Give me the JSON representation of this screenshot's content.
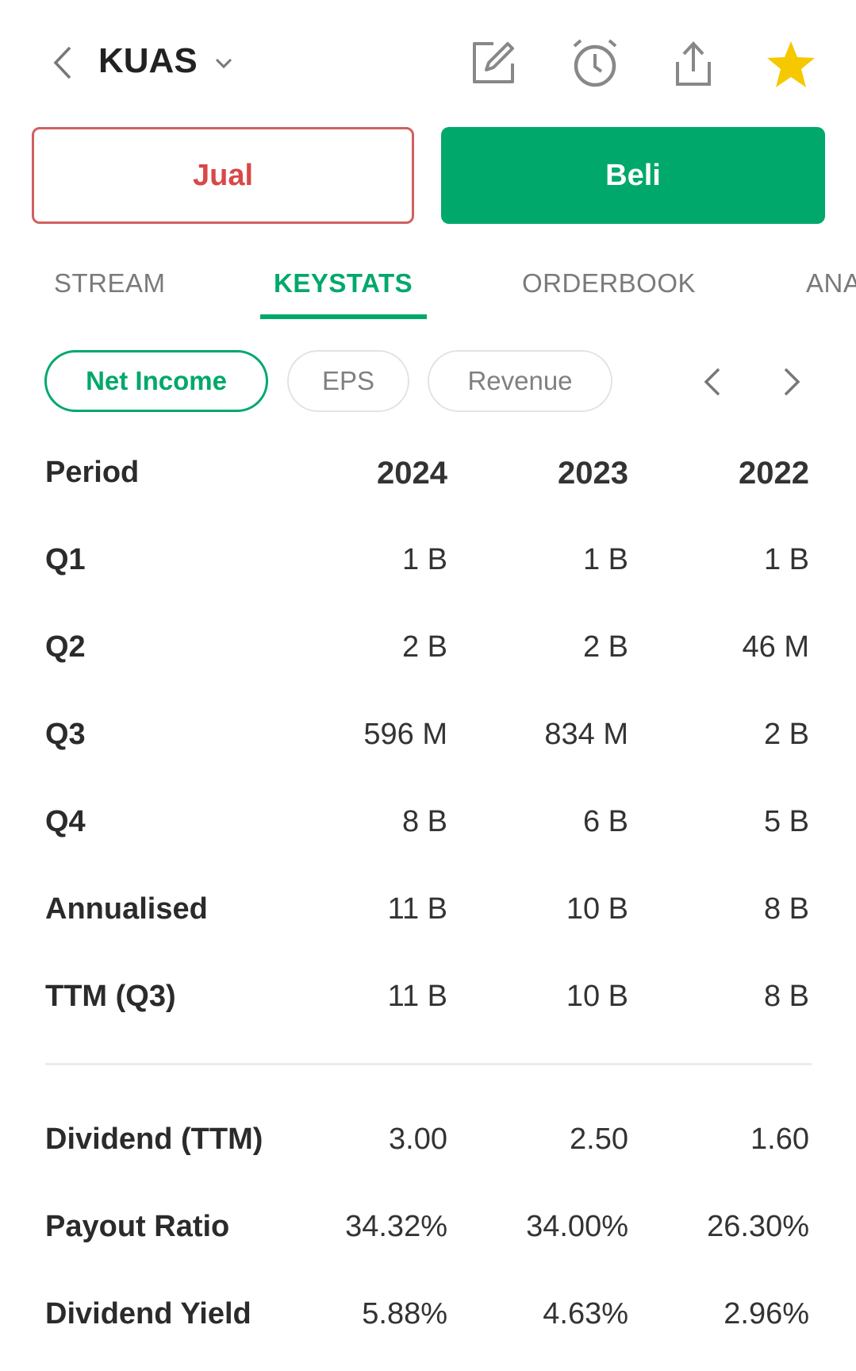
{
  "header": {
    "ticker": "KUAS"
  },
  "actions": {
    "sell_label": "Jual",
    "buy_label": "Beli"
  },
  "tabs": [
    "STREAM",
    "KEYSTATS",
    "ORDERBOOK",
    "ANA"
  ],
  "active_tab": "KEYSTATS",
  "pills": [
    "Net Income",
    "EPS",
    "Revenue"
  ],
  "active_pill": "Net Income",
  "table": {
    "header": {
      "label": "Period",
      "years": [
        "2024",
        "2023",
        "2022"
      ]
    },
    "rows": [
      {
        "label": "Q1",
        "values": [
          "1 B",
          "1 B",
          "1 B"
        ]
      },
      {
        "label": "Q2",
        "values": [
          "2 B",
          "2 B",
          "46 M"
        ]
      },
      {
        "label": "Q3",
        "values": [
          "596 M",
          "834 M",
          "2 B"
        ]
      },
      {
        "label": "Q4",
        "values": [
          "8 B",
          "6 B",
          "5 B"
        ]
      },
      {
        "label": "Annualised",
        "values": [
          "11 B",
          "10 B",
          "8 B"
        ]
      },
      {
        "label": "TTM (Q3)",
        "values": [
          "11 B",
          "10 B",
          "8 B"
        ]
      }
    ],
    "dividend_rows": [
      {
        "label": "Dividend (TTM)",
        "values": [
          "3.00",
          "2.50",
          "1.60"
        ]
      },
      {
        "label": "Payout Ratio",
        "values": [
          "34.32%",
          "34.00%",
          "26.30%"
        ]
      },
      {
        "label": "Dividend Yield",
        "values": [
          "5.88%",
          "4.63%",
          "2.96%"
        ]
      }
    ]
  },
  "colors": {
    "accent": "#00a86b",
    "sell": "#d94848",
    "star": "#f5c800"
  }
}
